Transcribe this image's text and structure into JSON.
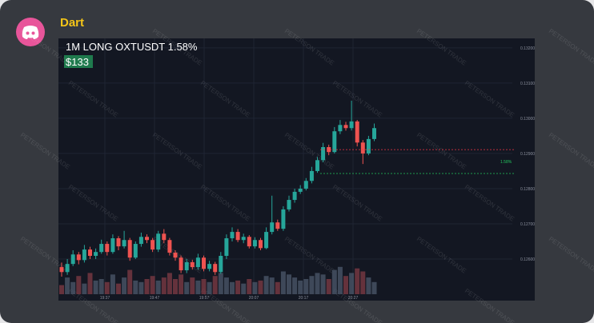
{
  "message": {
    "author": "Dart",
    "chart_data": {
      "type": "candlestick",
      "title": "1M LONG OXTUSDT 1.58%",
      "badge": "$133",
      "watermark": "PETERSON TRADE",
      "open": [
        0.12577,
        0.12563,
        0.12586,
        0.12613,
        0.12597,
        0.12627,
        0.12609,
        0.1262,
        0.12643,
        0.1262,
        0.12659,
        0.12636,
        0.12654,
        0.12604,
        0.12643,
        0.12663,
        0.12654,
        0.12627,
        0.12672,
        0.12654,
        0.12618,
        0.12604,
        0.12568,
        0.12591,
        0.12577,
        0.12604,
        0.12572,
        0.12586,
        0.12563,
        0.12609,
        0.12659,
        0.12677,
        0.12654,
        0.12663,
        0.12636,
        0.12654,
        0.12631,
        0.12677,
        0.12704,
        0.12686,
        0.12741,
        0.12768,
        0.12791,
        0.128,
        0.12822,
        0.1285,
        0.12881,
        0.12918,
        0.12904,
        0.12963,
        0.12981,
        0.12972,
        0.12991,
        0.12931,
        0.129,
        0.12941
      ],
      "high": [
        0.1259,
        0.126,
        0.12625,
        0.1262,
        0.1264,
        0.12635,
        0.1263,
        0.12655,
        0.1265,
        0.1267,
        0.12665,
        0.1268,
        0.1266,
        0.1265,
        0.12675,
        0.1267,
        0.1266,
        0.1268,
        0.12685,
        0.1266,
        0.12625,
        0.1261,
        0.126,
        0.12598,
        0.12615,
        0.1261,
        0.12595,
        0.12592,
        0.1262,
        0.1267,
        0.1269,
        0.12685,
        0.12672,
        0.12668,
        0.12662,
        0.1266,
        0.1269,
        0.1278,
        0.12712,
        0.1275,
        0.1278,
        0.128,
        0.1281,
        0.1283,
        0.12862,
        0.1289,
        0.1293,
        0.12925,
        0.12975,
        0.12995,
        0.1299,
        0.1305,
        0.12995,
        0.12938,
        0.1295,
        0.12985
      ],
      "low": [
        0.1255,
        0.12555,
        0.1258,
        0.12585,
        0.1259,
        0.126,
        0.126,
        0.12615,
        0.1261,
        0.12615,
        0.12625,
        0.1263,
        0.12595,
        0.126,
        0.12635,
        0.12645,
        0.1262,
        0.1262,
        0.12645,
        0.1261,
        0.12595,
        0.1256,
        0.1256,
        0.1257,
        0.1257,
        0.12565,
        0.12565,
        0.12555,
        0.12558,
        0.126,
        0.1265,
        0.12648,
        0.12645,
        0.1263,
        0.1263,
        0.12625,
        0.12628,
        0.1267,
        0.1268,
        0.1268,
        0.12735,
        0.1276,
        0.12785,
        0.12795,
        0.12815,
        0.12845,
        0.12875,
        0.12895,
        0.129,
        0.12955,
        0.12965,
        0.12965,
        0.1292,
        0.1287,
        0.12895,
        0.12935
      ],
      "close": [
        0.12563,
        0.12586,
        0.12613,
        0.12597,
        0.12627,
        0.12609,
        0.1262,
        0.12643,
        0.1262,
        0.12659,
        0.12636,
        0.12654,
        0.12604,
        0.12643,
        0.12663,
        0.12654,
        0.12627,
        0.12672,
        0.12654,
        0.12618,
        0.12604,
        0.12568,
        0.12591,
        0.12577,
        0.12604,
        0.12572,
        0.12586,
        0.12563,
        0.12609,
        0.12659,
        0.12677,
        0.12654,
        0.12663,
        0.12636,
        0.12654,
        0.12631,
        0.12677,
        0.12704,
        0.12686,
        0.12741,
        0.12768,
        0.12791,
        0.128,
        0.12822,
        0.1285,
        0.12881,
        0.12918,
        0.12904,
        0.12963,
        0.12981,
        0.12972,
        0.12991,
        0.12931,
        0.129,
        0.12941,
        0.12972
      ],
      "volume": [
        30,
        55,
        40,
        60,
        35,
        70,
        45,
        50,
        40,
        65,
        35,
        55,
        80,
        45,
        40,
        50,
        60,
        45,
        55,
        70,
        50,
        65,
        40,
        55,
        45,
        50,
        40,
        60,
        70,
        55,
        40,
        45,
        35,
        50,
        40,
        45,
        60,
        55,
        40,
        75,
        65,
        55,
        45,
        50,
        60,
        70,
        65,
        50,
        80,
        90,
        60,
        70,
        85,
        75,
        55,
        40
      ],
      "volume_lim": [
        0,
        100
      ],
      "up_color": "#26a69a",
      "down_color": "#ef5350",
      "ylim": [
        0.125,
        0.13227
      ],
      "yticks": [
        {
          "value": 0.132,
          "label": "0.13200"
        },
        {
          "value": 0.131,
          "label": "0.13100"
        },
        {
          "value": 0.13,
          "label": "0.13000"
        },
        {
          "value": 0.129,
          "label": "0.12900"
        },
        {
          "value": 0.128,
          "label": "0.12800"
        },
        {
          "value": 0.127,
          "label": "0.12700"
        },
        {
          "value": 0.126,
          "label": "0.12600"
        }
      ],
      "time_labels": [
        "19:37",
        "19:47",
        "19:57",
        "20:07",
        "20:17",
        "20:27"
      ],
      "price_lines": [
        {
          "value": 0.12911,
          "color": "#f23645"
        },
        {
          "value": 0.12843,
          "color": "#22c55e",
          "label": "1.58%"
        }
      ],
      "grid": true
    }
  }
}
